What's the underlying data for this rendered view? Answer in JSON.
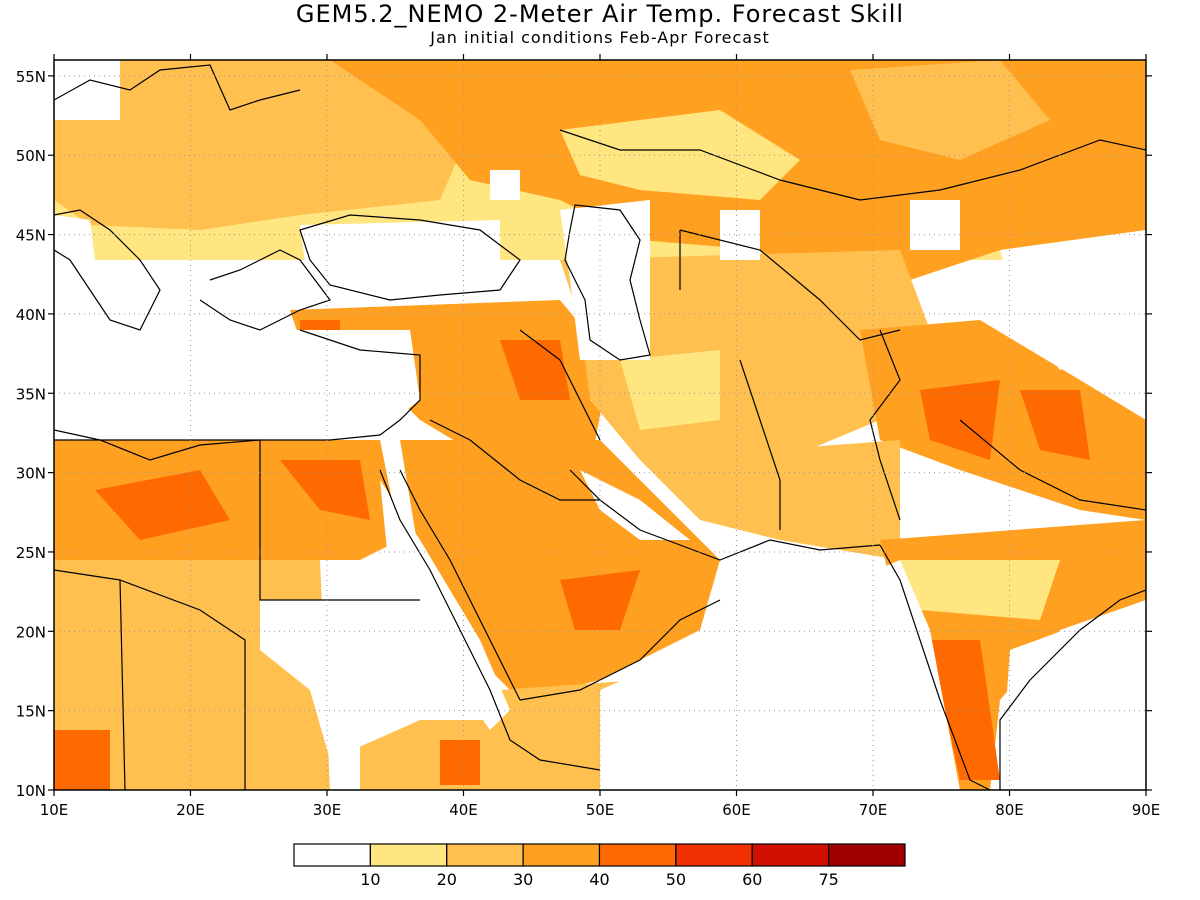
{
  "title": "GEM5.2_NEMO 2-Meter Air Temp. Forecast Skill",
  "subtitle": "Jan initial conditions  Feb-Apr Forecast",
  "map": {
    "lon_range": [
      10,
      90
    ],
    "lat_range": [
      10,
      56
    ],
    "x_tick_labels": [
      "10E",
      "20E",
      "30E",
      "40E",
      "50E",
      "60E",
      "70E",
      "80E",
      "90E"
    ],
    "y_tick_labels": [
      "10N",
      "15N",
      "20N",
      "25N",
      "30N",
      "35N",
      "40N",
      "45N",
      "50N",
      "55N"
    ],
    "gridlines": "dotted"
  },
  "colorbar": {
    "colors": [
      "#ffffff",
      "#ffe680",
      "#ffc050",
      "#ffa020",
      "#ff6a00",
      "#f03000",
      "#d01000",
      "#a00000"
    ],
    "labels": [
      "10",
      "20",
      "30",
      "40",
      "50",
      "60",
      "75"
    ]
  }
}
